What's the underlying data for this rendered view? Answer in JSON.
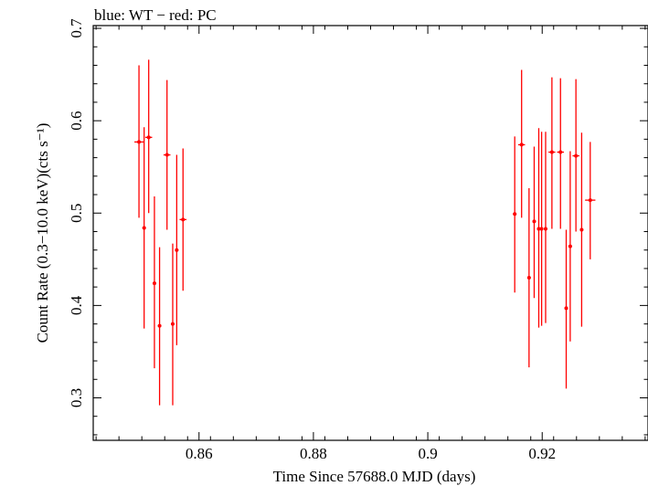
{
  "chart_data": {
    "type": "scatter",
    "title": "blue: WT − red: PC",
    "xlabel": "Time Since 57688.0 MJD (days)",
    "ylabel": "Count Rate (0.3−10.0 keV)(cts s⁻¹)",
    "xlim": [
      0.8415,
      0.9385
    ],
    "ylim": [
      0.254,
      0.703
    ],
    "x_ticks": [
      0.86,
      0.88,
      0.9,
      0.92
    ],
    "x_tick_labels": [
      "0.86",
      "0.88",
      "0.9",
      "0.92"
    ],
    "y_ticks": [
      0.3,
      0.4,
      0.5,
      0.6,
      0.7
    ],
    "y_tick_labels": [
      "0.3",
      "0.4",
      "0.5",
      "0.6",
      "0.7"
    ],
    "colors": {
      "PC": "#ff0000",
      "WT": "#0000ff",
      "frame": "#000000"
    },
    "grid": false,
    "series": [
      {
        "name": "PC",
        "color": "#ff0000",
        "points": [
          {
            "x": 0.8495,
            "xerr": 0.0008,
            "y": 0.577,
            "ylo": 0.495,
            "yhi": 0.66
          },
          {
            "x": 0.8504,
            "xerr": 0.0003,
            "y": 0.484,
            "ylo": 0.375,
            "yhi": 0.593
          },
          {
            "x": 0.8512,
            "xerr": 0.0006,
            "y": 0.582,
            "ylo": 0.5,
            "yhi": 0.666
          },
          {
            "x": 0.8522,
            "xerr": 0.0003,
            "y": 0.424,
            "ylo": 0.332,
            "yhi": 0.518
          },
          {
            "x": 0.8531,
            "xerr": 0.0003,
            "y": 0.378,
            "ylo": 0.292,
            "yhi": 0.463
          },
          {
            "x": 0.8544,
            "xerr": 0.0006,
            "y": 0.563,
            "ylo": 0.482,
            "yhi": 0.644
          },
          {
            "x": 0.8554,
            "xerr": 0.0003,
            "y": 0.38,
            "ylo": 0.292,
            "yhi": 0.467
          },
          {
            "x": 0.8561,
            "xerr": 0.0003,
            "y": 0.46,
            "ylo": 0.357,
            "yhi": 0.563
          },
          {
            "x": 0.8572,
            "xerr": 0.0006,
            "y": 0.493,
            "ylo": 0.416,
            "yhi": 0.57
          },
          {
            "x": 0.9152,
            "xerr": 0.0003,
            "y": 0.499,
            "ylo": 0.414,
            "yhi": 0.583
          },
          {
            "x": 0.9164,
            "xerr": 0.0006,
            "y": 0.574,
            "ylo": 0.495,
            "yhi": 0.655
          },
          {
            "x": 0.9177,
            "xerr": 0.0003,
            "y": 0.43,
            "ylo": 0.333,
            "yhi": 0.527
          },
          {
            "x": 0.9186,
            "xerr": 0.0003,
            "y": 0.491,
            "ylo": 0.408,
            "yhi": 0.572
          },
          {
            "x": 0.9194,
            "xerr": 0.0003,
            "y": 0.483,
            "ylo": 0.376,
            "yhi": 0.592
          },
          {
            "x": 0.9199,
            "xerr": 0.0003,
            "y": 0.483,
            "ylo": 0.378,
            "yhi": 0.588
          },
          {
            "x": 0.9206,
            "xerr": 0.0003,
            "y": 0.483,
            "ylo": 0.381,
            "yhi": 0.588
          },
          {
            "x": 0.9217,
            "xerr": 0.0006,
            "y": 0.566,
            "ylo": 0.483,
            "yhi": 0.647
          },
          {
            "x": 0.9232,
            "xerr": 0.0006,
            "y": 0.566,
            "ylo": 0.483,
            "yhi": 0.646
          },
          {
            "x": 0.9242,
            "xerr": 0.0003,
            "y": 0.397,
            "ylo": 0.31,
            "yhi": 0.482
          },
          {
            "x": 0.9249,
            "xerr": 0.0003,
            "y": 0.464,
            "ylo": 0.361,
            "yhi": 0.567
          },
          {
            "x": 0.9259,
            "xerr": 0.0006,
            "y": 0.562,
            "ylo": 0.48,
            "yhi": 0.645
          },
          {
            "x": 0.9269,
            "xerr": 0.0003,
            "y": 0.482,
            "ylo": 0.377,
            "yhi": 0.587
          },
          {
            "x": 0.9284,
            "xerr": 0.0009,
            "y": 0.514,
            "ylo": 0.45,
            "yhi": 0.577
          }
        ]
      }
    ]
  }
}
